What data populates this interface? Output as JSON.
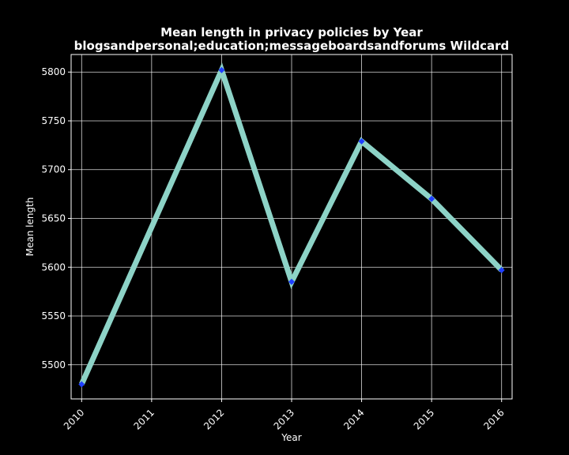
{
  "chart_data": {
    "type": "line",
    "title": "Mean length in privacy policies by Year",
    "subtitle": "blogsandpersonal;education;messageboardsandforums Wildcard",
    "xlabel": "Year",
    "ylabel": "Mean length",
    "x": [
      "2010",
      "2011",
      "2012",
      "2013",
      "2014",
      "2015",
      "2016"
    ],
    "series": [
      {
        "values": [
          5480,
          null,
          5802,
          5585,
          5729,
          5670,
          5597
        ]
      }
    ],
    "ylim": [
      5465,
      5818
    ],
    "yticks": [
      5500,
      5550,
      5600,
      5650,
      5700,
      5750,
      5800
    ],
    "grid": true,
    "line_color": "#8dd3c7",
    "marker_color": "#1f3fff",
    "background": "#000000"
  }
}
